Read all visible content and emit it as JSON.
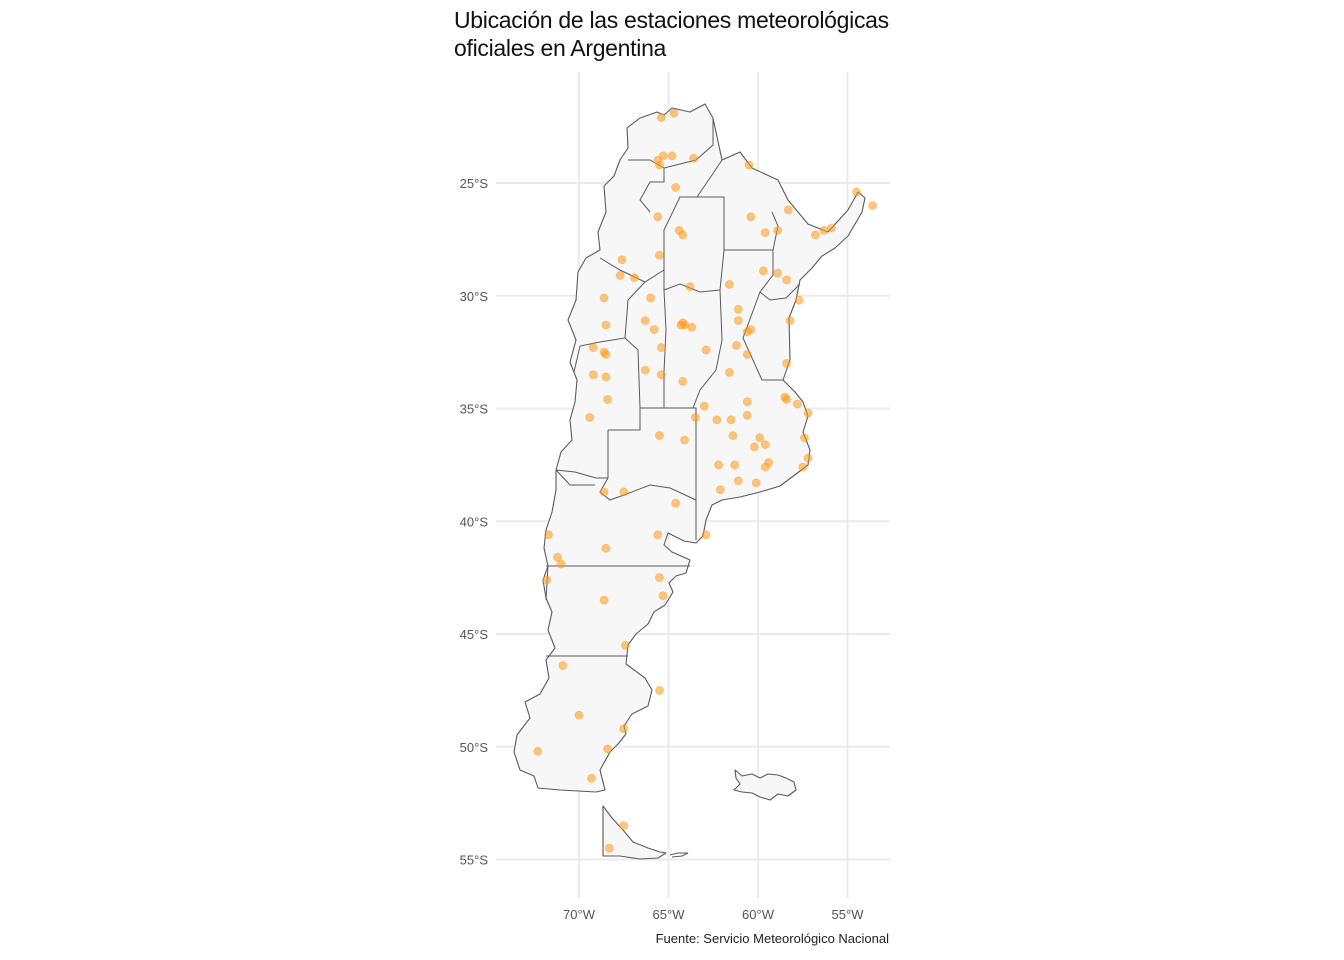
{
  "title": {
    "line1": "Ubicación de las estaciones meteorológicas",
    "line2": "oficiales en Argentina"
  },
  "caption": "Fuente: Servicio Meteorológico Nacional",
  "colors": {
    "background": "#ffffff",
    "land": "#f7f7f7",
    "border": "#5a5a5a",
    "grid": "#ebebeb",
    "station": "#ff9a1a"
  },
  "map": {
    "projection": "equirectangular",
    "lon_range": [
      -74,
      -53
    ],
    "lat_range": [
      -55.5,
      -20.5
    ],
    "grid": true,
    "lat_ticks": [
      {
        "value": -25,
        "label": "25°S"
      },
      {
        "value": -30,
        "label": "30°S"
      },
      {
        "value": -35,
        "label": "35°S"
      },
      {
        "value": -40,
        "label": "40°S"
      },
      {
        "value": -45,
        "label": "45°S"
      },
      {
        "value": -50,
        "label": "50°S"
      },
      {
        "value": -55,
        "label": "55°S"
      }
    ],
    "lon_ticks": [
      {
        "value": -70,
        "label": "70°W"
      },
      {
        "value": -65,
        "label": "65°W"
      },
      {
        "value": -60,
        "label": "60°W"
      },
      {
        "value": -55,
        "label": "55°W"
      }
    ]
  },
  "stations": [
    [
      -65.4,
      -22.1
    ],
    [
      -64.7,
      -21.9
    ],
    [
      -65.3,
      -23.8
    ],
    [
      -65.6,
      -24.0
    ],
    [
      -65.5,
      -24.2
    ],
    [
      -64.8,
      -23.8
    ],
    [
      -63.6,
      -23.9
    ],
    [
      -60.5,
      -24.2
    ],
    [
      -64.6,
      -25.2
    ],
    [
      -54.5,
      -25.4
    ],
    [
      -53.6,
      -26.0
    ],
    [
      -65.6,
      -26.5
    ],
    [
      -60.4,
      -26.5
    ],
    [
      -58.3,
      -26.2
    ],
    [
      -64.4,
      -27.1
    ],
    [
      -64.2,
      -27.3
    ],
    [
      -59.6,
      -27.2
    ],
    [
      -58.9,
      -27.1
    ],
    [
      -56.8,
      -27.3
    ],
    [
      -56.3,
      -27.1
    ],
    [
      -55.9,
      -27.0
    ],
    [
      -65.5,
      -28.2
    ],
    [
      -67.6,
      -28.4
    ],
    [
      -67.7,
      -29.1
    ],
    [
      -66.9,
      -29.2
    ],
    [
      -59.7,
      -28.9
    ],
    [
      -58.9,
      -29.0
    ],
    [
      -58.4,
      -29.3
    ],
    [
      -61.6,
      -29.5
    ],
    [
      -63.8,
      -29.6
    ],
    [
      -68.6,
      -30.1
    ],
    [
      -66.0,
      -30.1
    ],
    [
      -57.7,
      -30.2
    ],
    [
      -61.1,
      -30.6
    ],
    [
      -68.5,
      -31.3
    ],
    [
      -65.8,
      -31.5
    ],
    [
      -66.3,
      -31.1
    ],
    [
      -64.2,
      -31.2
    ],
    [
      -64.1,
      -31.3
    ],
    [
      -63.7,
      -31.4
    ],
    [
      -61.1,
      -31.1
    ],
    [
      -60.6,
      -31.6
    ],
    [
      -60.4,
      -31.5
    ],
    [
      -58.2,
      -31.1
    ],
    [
      -69.2,
      -32.3
    ],
    [
      -68.6,
      -32.5
    ],
    [
      -68.5,
      -32.6
    ],
    [
      -65.4,
      -32.3
    ],
    [
      -62.9,
      -32.4
    ],
    [
      -61.2,
      -32.2
    ],
    [
      -60.6,
      -32.6
    ],
    [
      -58.4,
      -33.0
    ],
    [
      -66.3,
      -33.3
    ],
    [
      -65.4,
      -33.5
    ],
    [
      -64.2,
      -33.8
    ],
    [
      -61.6,
      -33.4
    ],
    [
      -69.2,
      -33.5
    ],
    [
      -68.5,
      -33.6
    ],
    [
      -68.4,
      -34.6
    ],
    [
      -60.6,
      -34.7
    ],
    [
      -58.5,
      -34.5
    ],
    [
      -58.4,
      -34.6
    ],
    [
      -57.8,
      -34.8
    ],
    [
      -57.2,
      -35.2
    ],
    [
      -63.0,
      -34.9
    ],
    [
      -63.5,
      -35.4
    ],
    [
      -62.3,
      -35.5
    ],
    [
      -61.5,
      -35.5
    ],
    [
      -60.6,
      -35.3
    ],
    [
      -69.4,
      -35.4
    ],
    [
      -65.5,
      -36.2
    ],
    [
      -64.1,
      -36.4
    ],
    [
      -61.4,
      -36.2
    ],
    [
      -59.9,
      -36.3
    ],
    [
      -59.6,
      -36.6
    ],
    [
      -60.2,
      -36.7
    ],
    [
      -57.4,
      -36.3
    ],
    [
      -62.2,
      -37.5
    ],
    [
      -61.3,
      -37.5
    ],
    [
      -59.4,
      -37.4
    ],
    [
      -59.6,
      -37.6
    ],
    [
      -57.2,
      -37.2
    ],
    [
      -57.5,
      -37.6
    ],
    [
      -61.1,
      -38.2
    ],
    [
      -60.1,
      -38.3
    ],
    [
      -62.1,
      -38.6
    ],
    [
      -67.5,
      -38.7
    ],
    [
      -68.6,
      -38.7
    ],
    [
      -64.6,
      -39.2
    ],
    [
      -65.6,
      -40.6
    ],
    [
      -62.9,
      -40.6
    ],
    [
      -71.7,
      -40.6
    ],
    [
      -68.5,
      -41.2
    ],
    [
      -71.2,
      -41.6
    ],
    [
      -71.0,
      -41.9
    ],
    [
      -71.8,
      -42.6
    ],
    [
      -65.5,
      -42.5
    ],
    [
      -65.3,
      -43.3
    ],
    [
      -68.6,
      -43.5
    ],
    [
      -67.4,
      -45.5
    ],
    [
      -70.9,
      -46.4
    ],
    [
      -65.5,
      -47.5
    ],
    [
      -70.0,
      -48.6
    ],
    [
      -67.5,
      -49.2
    ],
    [
      -68.4,
      -50.1
    ],
    [
      -72.3,
      -50.2
    ],
    [
      -69.3,
      -51.4
    ],
    [
      -67.5,
      -53.5
    ],
    [
      -68.3,
      -54.5
    ],
    [
      -64.3,
      -31.3
    ]
  ]
}
